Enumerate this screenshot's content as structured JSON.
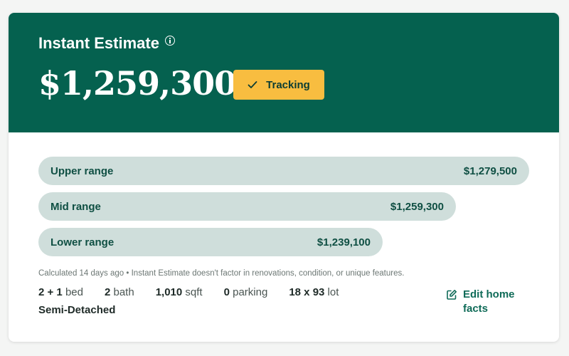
{
  "header": {
    "title": "Instant Estimate",
    "price": "$1,259,300",
    "tracking_label": "Tracking",
    "background_color": "#05614f",
    "button_color": "#f8bd40"
  },
  "ranges": {
    "upper": {
      "label": "Upper range",
      "value": "$1,279,500"
    },
    "mid": {
      "label": "Mid range",
      "value": "$1,259,300"
    },
    "lower": {
      "label": "Lower range",
      "value": "$1,239,100"
    }
  },
  "note": "Calculated 14 days ago • Instant Estimate doesn't factor in renovations, condition, or unique features.",
  "facts": {
    "beds": {
      "value": "2 + 1",
      "unit": "bed"
    },
    "baths": {
      "value": "2",
      "unit": "bath"
    },
    "sqft": {
      "value": "1,010",
      "unit": "sqft"
    },
    "parking": {
      "value": "0",
      "unit": "parking"
    },
    "lot": {
      "value": "18 x 93",
      "unit": "lot"
    },
    "home_type": "Semi-Detached"
  },
  "edit_link": {
    "label": "Edit home facts"
  },
  "icons": {
    "info": "info-icon",
    "check": "check-icon",
    "edit": "edit-icon"
  }
}
